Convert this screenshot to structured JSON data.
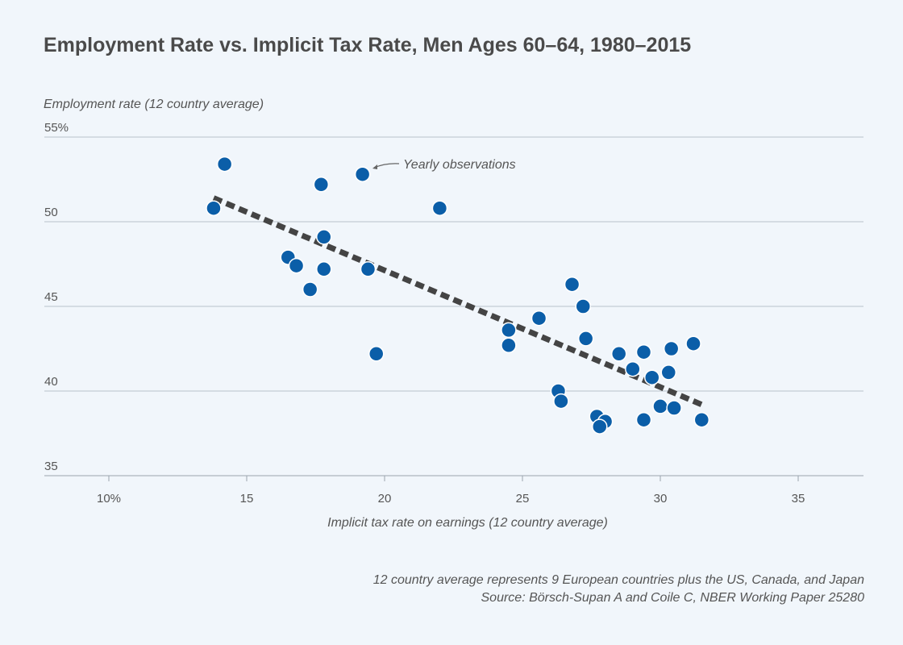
{
  "chart_data": {
    "type": "scatter",
    "title": "Employment Rate vs. Implicit Tax Rate, Men Ages 60–64, 1980–2015",
    "ylabel": "Employment rate (12 country average)",
    "xlabel": "Implicit tax rate on earnings (12 country average)",
    "xlim": [
      8,
      37
    ],
    "ylim": [
      35,
      55
    ],
    "x_ticks": [
      10,
      15,
      20,
      25,
      30,
      35
    ],
    "x_tick_labels": [
      "10%",
      "15",
      "20",
      "25",
      "30",
      "35"
    ],
    "y_ticks": [
      35,
      40,
      45,
      50,
      55
    ],
    "y_tick_labels": [
      "35",
      "40",
      "45",
      "50",
      "55%"
    ],
    "grid": true,
    "annotation": "Yearly observations",
    "points": [
      [
        13.8,
        50.8
      ],
      [
        14.2,
        53.4
      ],
      [
        17.7,
        52.2
      ],
      [
        19.2,
        52.8
      ],
      [
        22.0,
        50.8
      ],
      [
        17.8,
        49.1
      ],
      [
        16.5,
        47.9
      ],
      [
        16.8,
        47.4
      ],
      [
        17.8,
        47.2
      ],
      [
        19.4,
        47.2
      ],
      [
        17.3,
        46.0
      ],
      [
        19.7,
        42.2
      ],
      [
        26.8,
        46.3
      ],
      [
        27.2,
        45.0
      ],
      [
        25.6,
        44.3
      ],
      [
        24.5,
        43.6
      ],
      [
        24.5,
        42.7
      ],
      [
        27.3,
        43.1
      ],
      [
        28.5,
        42.2
      ],
      [
        29.4,
        42.3
      ],
      [
        30.4,
        42.5
      ],
      [
        31.2,
        42.8
      ],
      [
        29.0,
        41.3
      ],
      [
        29.7,
        40.8
      ],
      [
        30.3,
        41.1
      ],
      [
        26.3,
        40.0
      ],
      [
        26.4,
        39.4
      ],
      [
        27.7,
        38.5
      ],
      [
        28.0,
        38.2
      ],
      [
        27.8,
        37.9
      ],
      [
        29.4,
        38.3
      ],
      [
        30.0,
        39.1
      ],
      [
        30.5,
        39.0
      ],
      [
        31.5,
        38.3
      ]
    ],
    "trendline": [
      [
        13.8,
        51.4
      ],
      [
        31.5,
        39.2
      ]
    ],
    "colors": {
      "points": "#0b5ea8",
      "trend": "#444444",
      "grid": "#b9c2cb"
    }
  },
  "notes": [
    "12 country average represents 9 European countries plus the US, Canada, and Japan",
    "Source: Börsch-Supan A and Coile C, NBER Working Paper 25280"
  ]
}
